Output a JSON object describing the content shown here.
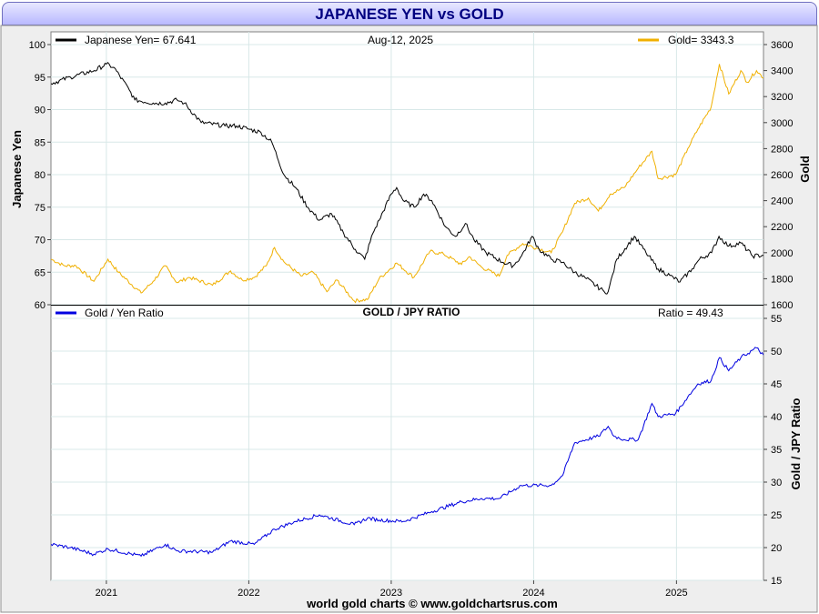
{
  "header": {
    "title": "JAPANESE YEN vs GOLD"
  },
  "footer": {
    "credit": "world gold charts © www.goldchartsrus.com"
  },
  "colors": {
    "yen": "#000000",
    "gold": "#f0b000",
    "ratio": "#0000e0",
    "grid": "#d8e8e8",
    "frame": "#909090"
  },
  "chart_data": [
    {
      "type": "line",
      "title": "",
      "date_label": "Aug-12,  2025",
      "x_ticks": [
        "2021",
        "2022",
        "2023",
        "2024",
        "2025"
      ],
      "x_range": [
        "2020-08-12",
        "2025-08-12"
      ],
      "y_left": {
        "label": "Japanese Yen",
        "range": [
          60,
          100
        ],
        "ticks": [
          "60",
          "65",
          "70",
          "75",
          "80",
          "85",
          "90",
          "95",
          "100"
        ]
      },
      "y_right": {
        "label": "Gold",
        "range": [
          1600,
          3600
        ],
        "ticks": [
          "1600",
          "1800",
          "2000",
          "2200",
          "2400",
          "2600",
          "2800",
          "3000",
          "3200",
          "3400",
          "3600"
        ]
      },
      "legend": [
        {
          "text": "Japanese Yen= 67.641",
          "position": "top-left"
        },
        {
          "text": "Gold= 3343.3",
          "position": "top-right"
        }
      ],
      "series": [
        {
          "name": "Japanese Yen",
          "axis": "left",
          "points": [
            [
              "2020-08-12",
              94
            ],
            [
              "2020-10-01",
              95
            ],
            [
              "2020-12-01",
              96
            ],
            [
              "2021-01-01",
              97
            ],
            [
              "2021-01-20",
              96.5
            ],
            [
              "2021-03-01",
              93
            ],
            [
              "2021-03-15",
              91.5
            ],
            [
              "2021-05-01",
              91
            ],
            [
              "2021-06-01",
              91
            ],
            [
              "2021-07-01",
              91.5
            ],
            [
              "2021-07-20",
              91
            ],
            [
              "2021-09-01",
              88
            ],
            [
              "2021-11-01",
              87.5
            ],
            [
              "2021-12-01",
              87.5
            ],
            [
              "2022-01-01",
              87
            ],
            [
              "2022-02-01",
              86.5
            ],
            [
              "2022-03-01",
              85
            ],
            [
              "2022-04-01",
              80
            ],
            [
              "2022-05-01",
              78
            ],
            [
              "2022-06-01",
              75
            ],
            [
              "2022-07-01",
              73
            ],
            [
              "2022-08-01",
              74
            ],
            [
              "2022-09-01",
              71
            ],
            [
              "2022-10-01",
              68.5
            ],
            [
              "2022-10-25",
              67
            ],
            [
              "2022-11-15",
              71
            ],
            [
              "2022-12-01",
              73
            ],
            [
              "2023-01-01",
              77
            ],
            [
              "2023-01-15",
              78
            ],
            [
              "2023-02-01",
              76
            ],
            [
              "2023-03-01",
              75
            ],
            [
              "2023-03-25",
              77
            ],
            [
              "2023-04-15",
              76
            ],
            [
              "2023-05-20",
              72
            ],
            [
              "2023-06-15",
              70.5
            ],
            [
              "2023-07-10",
              72.5
            ],
            [
              "2023-08-01",
              70
            ],
            [
              "2023-09-01",
              68
            ],
            [
              "2023-10-15",
              66.5
            ],
            [
              "2023-11-10",
              66
            ],
            [
              "2023-12-01",
              67.5
            ],
            [
              "2023-12-28",
              70.5
            ],
            [
              "2024-01-15",
              68.5
            ],
            [
              "2024-02-15",
              67
            ],
            [
              "2024-03-15",
              66.5
            ],
            [
              "2024-04-15",
              65
            ],
            [
              "2024-05-15",
              64
            ],
            [
              "2024-06-30",
              62
            ],
            [
              "2024-07-10",
              62
            ],
            [
              "2024-08-01",
              67
            ],
            [
              "2024-09-15",
              70.5
            ],
            [
              "2024-10-15",
              68
            ],
            [
              "2024-11-15",
              65.5
            ],
            [
              "2024-12-15",
              64.5
            ],
            [
              "2025-01-10",
              63.5
            ],
            [
              "2025-02-10",
              65.5
            ],
            [
              "2025-03-01",
              67
            ],
            [
              "2025-04-01",
              68
            ],
            [
              "2025-04-20",
              70.5
            ],
            [
              "2025-05-15",
              69
            ],
            [
              "2025-06-15",
              69.5
            ],
            [
              "2025-07-15",
              67.5
            ],
            [
              "2025-08-12",
              67.6
            ]
          ]
        },
        {
          "name": "Gold",
          "axis": "right",
          "points": [
            [
              "2020-08-12",
              1950
            ],
            [
              "2020-09-15",
              1900
            ],
            [
              "2020-10-15",
              1900
            ],
            [
              "2020-11-30",
              1780
            ],
            [
              "2021-01-05",
              1950
            ],
            [
              "2021-02-01",
              1850
            ],
            [
              "2021-03-31",
              1690
            ],
            [
              "2021-05-01",
              1780
            ],
            [
              "2021-06-01",
              1900
            ],
            [
              "2021-07-01",
              1770
            ],
            [
              "2021-08-01",
              1810
            ],
            [
              "2021-09-30",
              1750
            ],
            [
              "2021-11-15",
              1860
            ],
            [
              "2021-12-15",
              1790
            ],
            [
              "2022-01-15",
              1810
            ],
            [
              "2022-02-15",
              1900
            ],
            [
              "2022-03-08",
              2040
            ],
            [
              "2022-04-01",
              1930
            ],
            [
              "2022-05-15",
              1820
            ],
            [
              "2022-06-15",
              1850
            ],
            [
              "2022-07-20",
              1700
            ],
            [
              "2022-08-15",
              1790
            ],
            [
              "2022-09-28",
              1630
            ],
            [
              "2022-11-01",
              1640
            ],
            [
              "2022-12-01",
              1800
            ],
            [
              "2023-01-15",
              1920
            ],
            [
              "2023-02-28",
              1810
            ],
            [
              "2023-04-10",
              2010
            ],
            [
              "2023-05-15",
              1990
            ],
            [
              "2023-06-30",
              1910
            ],
            [
              "2023-07-20",
              1970
            ],
            [
              "2023-08-20",
              1890
            ],
            [
              "2023-10-05",
              1820
            ],
            [
              "2023-10-25",
              1980
            ],
            [
              "2023-12-04",
              2070
            ],
            [
              "2024-01-15",
              2030
            ],
            [
              "2024-02-15",
              2000
            ],
            [
              "2024-03-15",
              2160
            ],
            [
              "2024-04-15",
              2380
            ],
            [
              "2024-05-20",
              2420
            ],
            [
              "2024-06-15",
              2320
            ],
            [
              "2024-07-15",
              2450
            ],
            [
              "2024-08-20",
              2500
            ],
            [
              "2024-09-25",
              2650
            ],
            [
              "2024-10-30",
              2780
            ],
            [
              "2024-11-15",
              2570
            ],
            [
              "2024-12-30",
              2600
            ],
            [
              "2025-01-30",
              2800
            ],
            [
              "2025-02-25",
              2950
            ],
            [
              "2025-03-31",
              3120
            ],
            [
              "2025-04-21",
              3450
            ],
            [
              "2025-05-15",
              3220
            ],
            [
              "2025-06-15",
              3400
            ],
            [
              "2025-07-01",
              3310
            ],
            [
              "2025-07-25",
              3400
            ],
            [
              "2025-08-12",
              3343
            ]
          ]
        }
      ]
    },
    {
      "type": "line",
      "title": "GOLD / JPY RATIO",
      "x_ticks": [
        "2021",
        "2022",
        "2023",
        "2024",
        "2025"
      ],
      "x_range": [
        "2020-08-12",
        "2025-08-12"
      ],
      "y_right": {
        "label": "Gold / JPY Ratio",
        "range": [
          15,
          55
        ],
        "ticks": [
          "15",
          "20",
          "25",
          "30",
          "35",
          "40",
          "45",
          "50",
          "55"
        ]
      },
      "legend": [
        {
          "text": "Gold / Yen Ratio",
          "position": "top-left"
        },
        {
          "text": "Ratio = 49.43",
          "position": "top-right"
        }
      ],
      "series": [
        {
          "name": "Gold / Yen Ratio",
          "axis": "right",
          "points": [
            [
              "2020-08-12",
              20.5
            ],
            [
              "2020-10-01",
              20
            ],
            [
              "2020-11-30",
              19
            ],
            [
              "2021-01-05",
              19.8
            ],
            [
              "2021-03-31",
              18.7
            ],
            [
              "2021-06-01",
              20.5
            ],
            [
              "2021-07-01",
              19.5
            ],
            [
              "2021-09-30",
              19.3
            ],
            [
              "2021-11-15",
              21
            ],
            [
              "2022-01-15",
              20.5
            ],
            [
              "2022-03-08",
              22.8
            ],
            [
              "2022-05-01",
              24
            ],
            [
              "2022-07-01",
              25
            ],
            [
              "2022-09-28",
              23.5
            ],
            [
              "2022-11-01",
              24.5
            ],
            [
              "2022-12-01",
              24.2
            ],
            [
              "2023-02-01",
              24
            ],
            [
              "2023-04-15",
              25.5
            ],
            [
              "2023-06-30",
              27
            ],
            [
              "2023-08-20",
              27.5
            ],
            [
              "2023-10-05",
              27.5
            ],
            [
              "2023-11-30",
              29.5
            ],
            [
              "2024-01-15",
              29.5
            ],
            [
              "2024-02-15",
              29.5
            ],
            [
              "2024-03-15",
              31
            ],
            [
              "2024-04-15",
              36
            ],
            [
              "2024-06-15",
              37
            ],
            [
              "2024-07-10",
              38.5
            ],
            [
              "2024-07-25",
              37
            ],
            [
              "2024-08-20",
              36.5
            ],
            [
              "2024-09-25",
              36.5
            ],
            [
              "2024-10-30",
              42
            ],
            [
              "2024-11-15",
              40
            ],
            [
              "2024-12-30",
              40.5
            ],
            [
              "2025-01-30",
              43
            ],
            [
              "2025-02-25",
              45
            ],
            [
              "2025-03-31",
              45.5
            ],
            [
              "2025-04-21",
              49
            ],
            [
              "2025-05-15",
              47
            ],
            [
              "2025-06-15",
              49
            ],
            [
              "2025-07-25",
              50.5
            ],
            [
              "2025-08-12",
              49.4
            ]
          ]
        }
      ]
    }
  ]
}
